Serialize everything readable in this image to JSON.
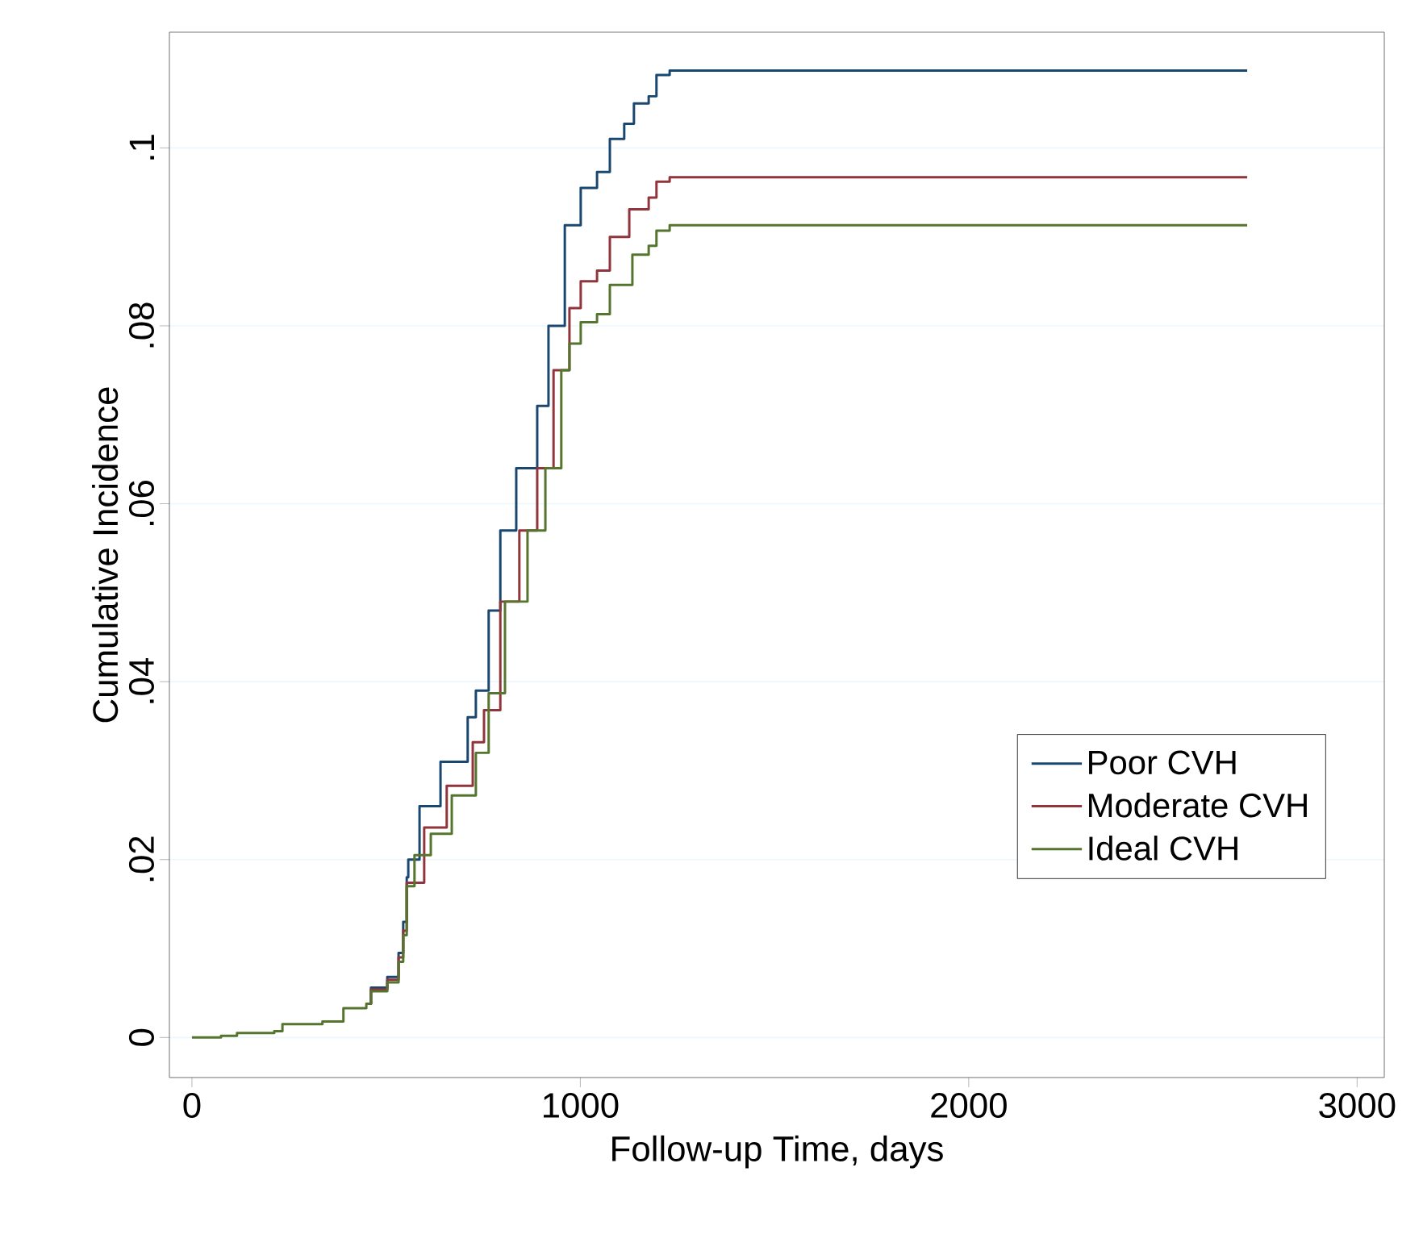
{
  "chart_data": {
    "type": "step",
    "xlabel": "Follow-up Time, days",
    "ylabel": "Cumulative Incidence",
    "xlim": [
      -58,
      3070
    ],
    "ylim": [
      -0.0045,
      0.113
    ],
    "xticks": [
      0,
      1000,
      2000,
      3000
    ],
    "yticks": [
      {
        "value": 0,
        "label": "0"
      },
      {
        "value": 0.02,
        "label": ".02"
      },
      {
        "value": 0.04,
        "label": ".04"
      },
      {
        "value": 0.06,
        "label": ".06"
      },
      {
        "value": 0.08,
        "label": ".08"
      },
      {
        "value": 0.1,
        "label": ".1"
      }
    ],
    "grid": "y",
    "legend": "right",
    "series": [
      {
        "name": "Poor CVH",
        "color": "#1a476f",
        "x": [
          449,
          461,
          503,
          532,
          544,
          553,
          557,
          586,
          640,
          710,
          731,
          764,
          794,
          835,
          889,
          918,
          960,
          1001,
          1043,
          1076,
          1113,
          1138,
          1176,
          1196,
          1230,
          2717
        ],
        "values": [
          0.0038,
          0.0056,
          0.0068,
          0.0095,
          0.013,
          0.018,
          0.02,
          0.026,
          0.031,
          0.036,
          0.039,
          0.048,
          0.057,
          0.064,
          0.071,
          0.08,
          0.0913,
          0.0955,
          0.0973,
          0.101,
          0.1027,
          0.105,
          0.1058,
          0.1082,
          0.1087,
          0.1087
        ]
      },
      {
        "name": "Moderate CVH",
        "color": "#90353b",
        "x": [
          449,
          461,
          503,
          532,
          544,
          553,
          598,
          656,
          723,
          752,
          794,
          843,
          889,
          931,
          972,
          1001,
          1043,
          1076,
          1126,
          1176,
          1196,
          1230,
          2717
        ],
        "values": [
          0.0038,
          0.0054,
          0.0065,
          0.009,
          0.012,
          0.0174,
          0.0236,
          0.0283,
          0.0332,
          0.0368,
          0.049,
          0.057,
          0.064,
          0.075,
          0.082,
          0.085,
          0.0862,
          0.09,
          0.0931,
          0.0944,
          0.0962,
          0.0967,
          0.0967
        ]
      },
      {
        "name": "Ideal CVH",
        "color": "#55752f",
        "x": [
          0,
          75,
          116,
          212,
          233,
          336,
          390,
          449,
          461,
          503,
          532,
          544,
          553,
          573,
          615,
          669,
          731,
          764,
          806,
          864,
          910,
          951,
          972,
          1001,
          1043,
          1076,
          1134,
          1176,
          1196,
          1230,
          2717
        ],
        "values": [
          0,
          0.0002,
          0.0005,
          0.0007,
          0.0015,
          0.0018,
          0.0033,
          0.0038,
          0.0052,
          0.0062,
          0.0085,
          0.0115,
          0.017,
          0.0205,
          0.0229,
          0.0272,
          0.032,
          0.0387,
          0.049,
          0.057,
          0.064,
          0.075,
          0.078,
          0.0804,
          0.0813,
          0.0846,
          0.088,
          0.089,
          0.0907,
          0.0913,
          0.0913
        ]
      }
    ]
  }
}
